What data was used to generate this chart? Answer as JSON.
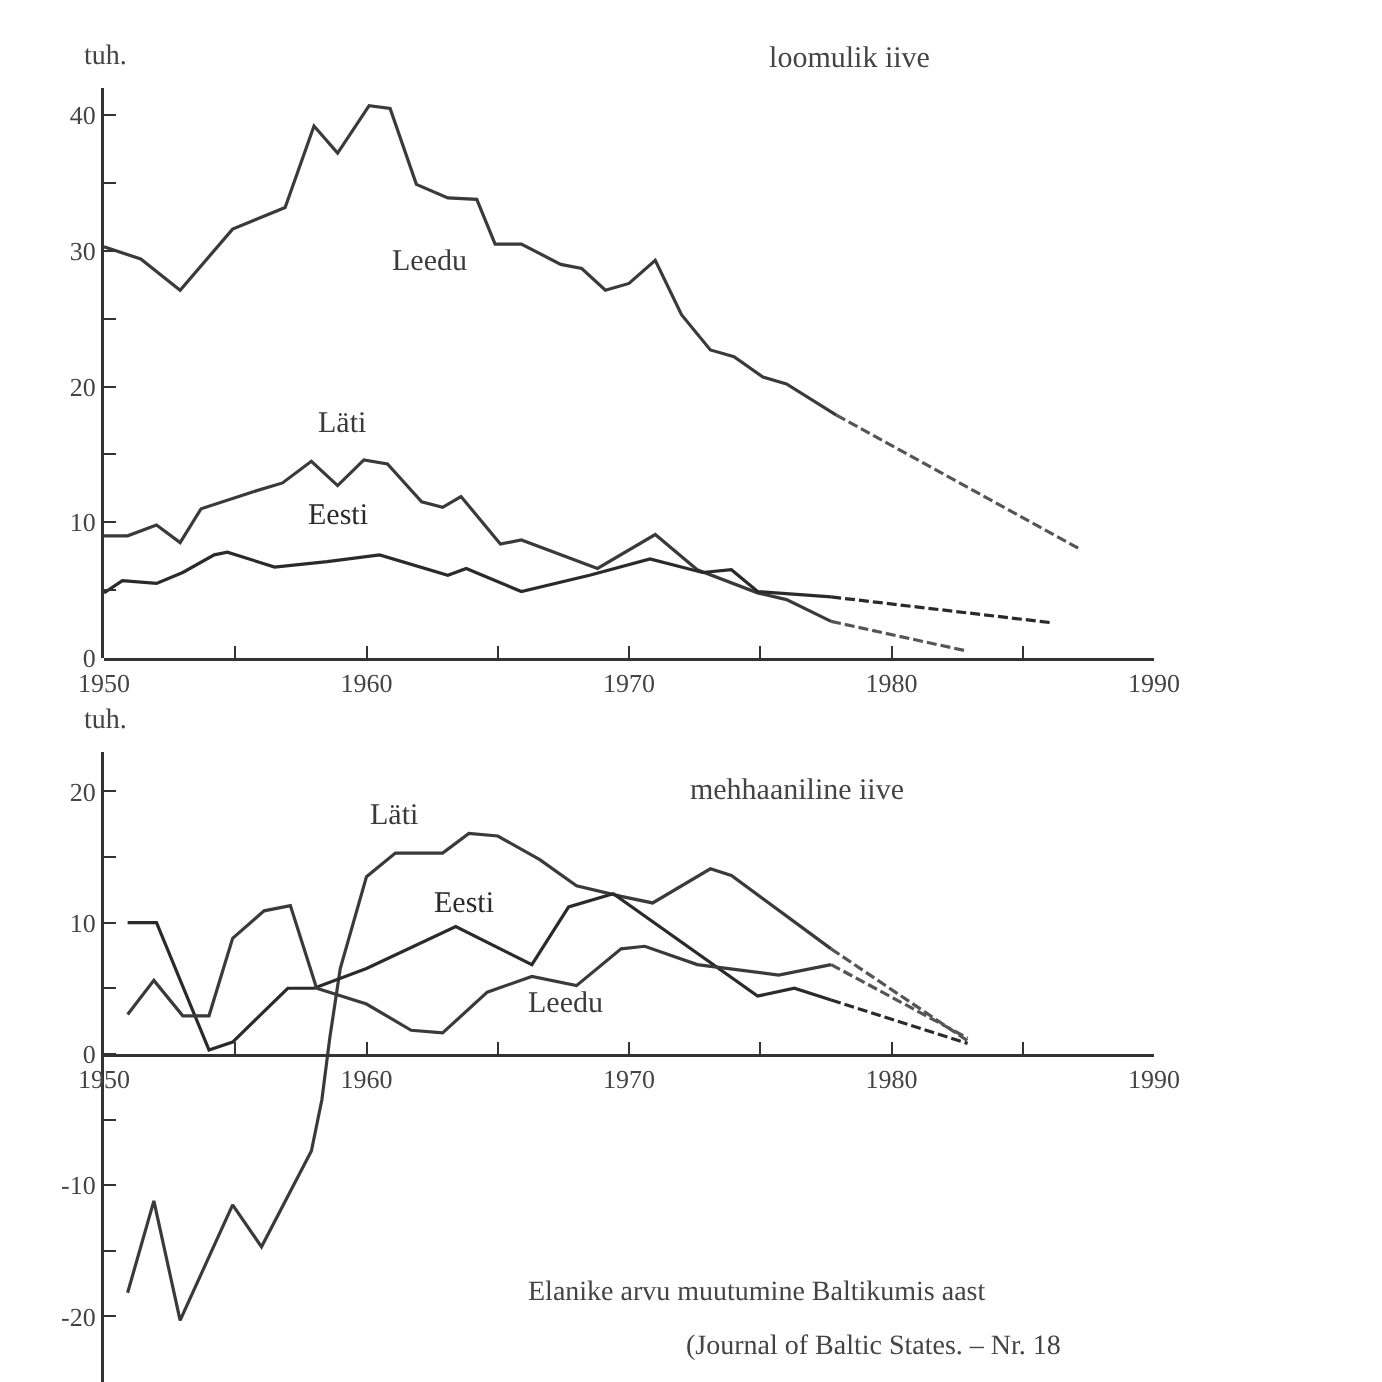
{
  "chart_data": [
    {
      "type": "line",
      "title": "loomulik iive",
      "ylabel": "tuh.",
      "xlim": [
        1950,
        1990
      ],
      "ylim": [
        0,
        42
      ],
      "xticks": [
        1950,
        {
          "value": 1955,
          "label": null
        },
        1960,
        {
          "value": 1965,
          "label": null
        },
        1970,
        {
          "value": 1975,
          "label": null
        },
        1980,
        {
          "value": 1985,
          "label": null
        },
        1990
      ],
      "yticks": [
        0,
        {
          "value": 5,
          "label": null
        },
        10,
        {
          "value": 15,
          "label": null
        },
        20,
        {
          "value": 25,
          "label": null
        },
        30,
        {
          "value": 35,
          "label": null
        },
        40
      ],
      "series": [
        {
          "name": "Leedu",
          "color": "#3a3a3a",
          "line_style": "solid",
          "x": [
            1950,
            1951.4,
            1952.9,
            1954.9,
            1956.9,
            1958,
            1958.9,
            1960.1,
            1960.9,
            1961.9,
            1963.1,
            1964.2,
            1964.9,
            1965.9,
            1967.4,
            1968.2,
            1969.1,
            1970,
            1971,
            1972,
            1973.1,
            1974,
            1975.1,
            1976,
            1977.9
          ],
          "values": [
            30.3,
            29.4,
            27.1,
            31.6,
            33.2,
            39.2,
            37.2,
            40.7,
            40.5,
            34.9,
            33.9,
            33.8,
            30.5,
            30.5,
            29,
            28.7,
            27.1,
            27.6,
            29.3,
            25.3,
            22.7,
            22.2,
            20.7,
            20.2,
            17.9
          ]
        },
        {
          "color": "#555555",
          "line_style": "dashed",
          "x": [
            1977.9,
            1987.2
          ],
          "values": [
            17.9,
            8
          ]
        },
        {
          "name": "Läti",
          "color": "#3a3a3a",
          "line_style": "solid",
          "x": [
            1950,
            1950.9,
            1952,
            1952.9,
            1953.7,
            1955.6,
            1956.8,
            1957.9,
            1958.9,
            1959.9,
            1960.8,
            1962.1,
            1962.9,
            1963.6,
            1965.1,
            1965.9,
            1968.8,
            1971,
            1972.6,
            1974.9,
            1976,
            1977.7
          ],
          "values": [
            9,
            9,
            9.8,
            8.5,
            11,
            12.2,
            12.9,
            14.5,
            12.7,
            14.6,
            14.3,
            11.5,
            11.1,
            11.9,
            8.4,
            8.7,
            6.6,
            9.1,
            6.5,
            4.8,
            4.3,
            2.7
          ]
        },
        {
          "color": "#555555",
          "line_style": "dashed",
          "x": [
            1977.7,
            1982.9
          ],
          "values": [
            2.7,
            0.5
          ]
        },
        {
          "name": "Eesti",
          "color": "#2a2a2a",
          "line_style": "solid",
          "x": [
            1950,
            1950.7,
            1952,
            1953,
            1954.2,
            1954.7,
            1956.5,
            1958.5,
            1960.5,
            1963.1,
            1963.8,
            1965.9,
            1968.5,
            1970.8,
            1972.8,
            1973.9,
            1974.9,
            1977.7
          ],
          "values": [
            4.8,
            5.7,
            5.5,
            6.3,
            7.6,
            7.8,
            6.7,
            7.1,
            7.6,
            6.1,
            6.6,
            4.9,
            6.1,
            7.3,
            6.3,
            6.5,
            4.9,
            4.5
          ]
        },
        {
          "color": "#2a2a2a",
          "line_style": "dashed",
          "x": [
            1977.7,
            1986.1
          ],
          "values": [
            4.5,
            2.6
          ]
        }
      ]
    },
    {
      "type": "line",
      "title": "mehhaaniline iive",
      "ylabel": "tuh.",
      "xlim": [
        1950,
        1990
      ],
      "ylim": [
        -25,
        23
      ],
      "xticks": [
        1950,
        {
          "value": 1955,
          "label": null
        },
        1960,
        {
          "value": 1965,
          "label": null
        },
        1970,
        {
          "value": 1975,
          "label": null
        },
        1980,
        {
          "value": 1985,
          "label": null
        },
        1990
      ],
      "yticks": [
        -20,
        {
          "value": -15,
          "label": null
        },
        -10,
        {
          "value": -5,
          "label": null
        },
        0,
        {
          "value": 5,
          "label": null
        },
        10,
        {
          "value": 15,
          "label": null
        },
        20
      ],
      "annotations": [
        "Elanike arvu muutumine Baltikumis aast",
        "(Journal of Baltic States. – Nr. 18"
      ],
      "series": [
        {
          "name": "Läti",
          "color": "#3a3a3a",
          "line_style": "solid",
          "x": [
            1950.9,
            1951.9,
            1952.9,
            1954.9,
            1956,
            1957.9,
            1958.3,
            1958.6,
            1959,
            1960,
            1961.1,
            1962.9,
            1963.9,
            1965,
            1966.6,
            1968,
            1969.7,
            1970.9,
            1973.1,
            1973.9,
            1977.7
          ],
          "values": [
            -18.2,
            -11.2,
            -20.3,
            -11.5,
            -14.7,
            -7.4,
            -3.5,
            1.2,
            6.5,
            13.5,
            15.3,
            15.3,
            16.8,
            16.6,
            14.8,
            12.8,
            12,
            11.5,
            14.1,
            13.6,
            8
          ]
        },
        {
          "color": "#555555",
          "line_style": "dashed",
          "x": [
            1977.7,
            1982.9
          ],
          "values": [
            8,
            1
          ]
        },
        {
          "name": "Eesti",
          "color": "#2a2a2a",
          "line_style": "solid",
          "x": [
            1950.9,
            1952,
            1954,
            1954.9,
            1957,
            1958,
            1960,
            1963.4,
            1966.3,
            1967.7,
            1969.4,
            1974.9,
            1976.3,
            1977.7
          ],
          "values": [
            10,
            10,
            0.3,
            0.9,
            5,
            5,
            6.5,
            9.7,
            6.8,
            11.2,
            12.2,
            4.4,
            5,
            4.1
          ]
        },
        {
          "color": "#2a2a2a",
          "line_style": "dashed",
          "x": [
            1977.7,
            1982.9
          ],
          "values": [
            4.1,
            0.8
          ]
        },
        {
          "name": "Leedu",
          "color": "#3a3a3a",
          "line_style": "solid",
          "x": [
            1950.9,
            1951.9,
            1953,
            1954,
            1954.9,
            1956.1,
            1957.1,
            1958.1,
            1960,
            1961.7,
            1962.9,
            1964.6,
            1966.3,
            1968,
            1969.7,
            1970.6,
            1972.6,
            1975.7,
            1977.7
          ],
          "values": [
            3,
            5.6,
            2.9,
            2.9,
            8.8,
            10.9,
            11.3,
            5,
            3.8,
            1.8,
            1.6,
            4.7,
            5.9,
            5.2,
            8,
            8.2,
            6.8,
            6,
            6.8
          ]
        },
        {
          "color": "#555555",
          "line_style": "dashed",
          "x": [
            1977.7,
            1982.9
          ],
          "values": [
            6.8,
            1.2
          ]
        }
      ]
    }
  ]
}
